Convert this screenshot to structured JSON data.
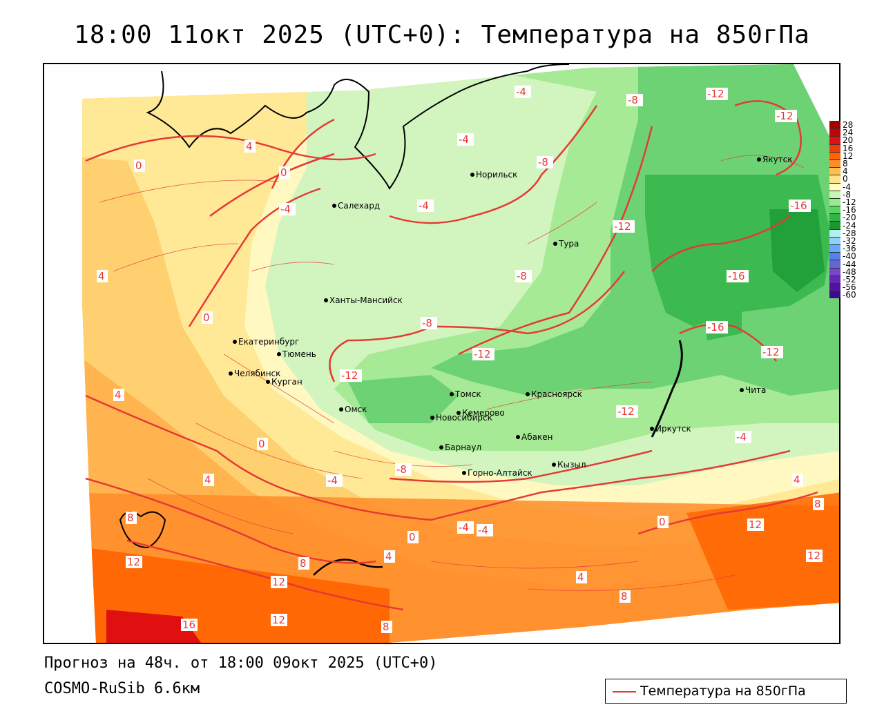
{
  "title": "18:00 11окт 2025 (UTC+0): Температура на 850гПа",
  "footer": {
    "forecast": "Прогноз на 48ч. от 18:00 09окт 2025 (UTC+0)",
    "model": "COSMO-RuSib 6.6км"
  },
  "legend": {
    "label": "Температура на 850гПа",
    "color": "#e53935"
  },
  "colorbar": {
    "ticks": [
      "28",
      "24",
      "20",
      "16",
      "12",
      "8",
      "4",
      "0",
      "-4",
      "-8",
      "-12",
      "-16",
      "-20",
      "-24",
      "-28",
      "-32",
      "-36",
      "-40",
      "-44",
      "-48",
      "-52",
      "-56",
      "-60"
    ],
    "colors": [
      "#a00000",
      "#c80000",
      "#e01010",
      "#f03c0a",
      "#ff6400",
      "#ff8c28",
      "#ffc050",
      "#ffe28a",
      "#ffffc0",
      "#c8f5b4",
      "#96eb8c",
      "#5ad264",
      "#32b446",
      "#1e9632",
      "#b4f0f0",
      "#8cd2ff",
      "#64aaff",
      "#5082f0",
      "#6464d2",
      "#7846c8",
      "#6428b4",
      "#5014a0",
      "#3c0a8c"
    ]
  },
  "cities": [
    {
      "name": "Норильск"
    },
    {
      "name": "Якутск"
    },
    {
      "name": "Салехард"
    },
    {
      "name": "Тура"
    },
    {
      "name": "Ханты-Мансийск"
    },
    {
      "name": "Екатеринбург"
    },
    {
      "name": "Тюмень"
    },
    {
      "name": "Челябинск"
    },
    {
      "name": "Курган"
    },
    {
      "name": "Омск"
    },
    {
      "name": "Новосибирск"
    },
    {
      "name": "Томск"
    },
    {
      "name": "Кемерово"
    },
    {
      "name": "Красноярск"
    },
    {
      "name": "Абакен"
    },
    {
      "name": "Барнаул"
    },
    {
      "name": "Горно-Алтайск"
    },
    {
      "name": "Кызыл"
    },
    {
      "name": "Иркутск"
    },
    {
      "name": "Чита"
    }
  ],
  "isolines": [
    "-4",
    "-8",
    "-12",
    "-12",
    "-4",
    "-8",
    "-4",
    "-12",
    "-16",
    "0",
    "4",
    "0",
    "-4",
    "-8",
    "4",
    "0",
    "-8",
    "-12",
    "-12",
    "-16",
    "-16",
    "-12",
    "4",
    "0",
    "-4",
    "-8",
    "-12",
    "-4",
    "4",
    "8",
    "12",
    "12",
    "16",
    "8",
    "12",
    "8",
    "4",
    "0",
    "4",
    "-4",
    "-4",
    "0",
    "4",
    "8",
    "12",
    "8",
    "12"
  ]
}
